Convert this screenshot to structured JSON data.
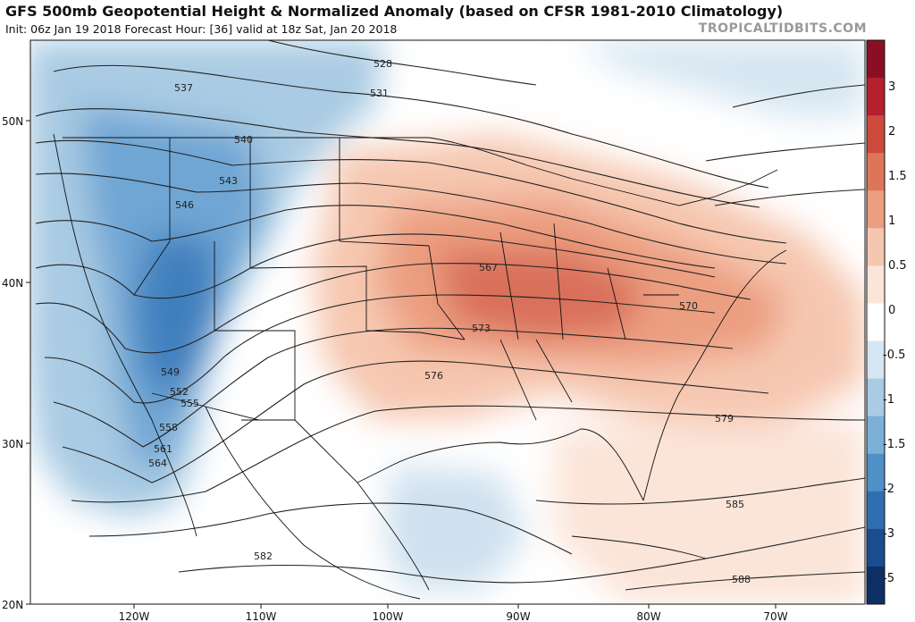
{
  "header": {
    "title": "GFS 500mb Geopotential Height & Normalized Anomaly (based on CFSR 1981-2010 Climatology)",
    "init_line": "Init: 06z Jan 19 2018   Forecast Hour: [36]   valid at 18z Sat, Jan 20 2018",
    "credit": "TROPICALTIDBITS.COM"
  },
  "axes": {
    "lat_labels": [
      "50N",
      "40N",
      "30N",
      "20N"
    ],
    "lon_labels": [
      "120W",
      "110W",
      "100W",
      "90W",
      "80W",
      "70W"
    ]
  },
  "colorbar": {
    "labels": [
      "3",
      "2",
      "1.5",
      "1",
      "0.5",
      "0",
      "-0.5",
      "-1",
      "-1.5",
      "-2",
      "-3",
      "-5"
    ],
    "colors": [
      "#8b0f24",
      "#b51f2e",
      "#cc4a3c",
      "#dd7658",
      "#ec9e80",
      "#f6c7b0",
      "#fbe4d8",
      "#ffffff",
      "#d6e6f2",
      "#a9cbe3",
      "#7cb0d8",
      "#4f90c6",
      "#2f6fb1",
      "#1b4d8e",
      "#0d2f66"
    ]
  },
  "contours": {
    "labels": [
      "528",
      "531",
      "537",
      "540",
      "543",
      "546",
      "549",
      "552",
      "555",
      "558",
      "561",
      "564",
      "567",
      "570",
      "573",
      "576",
      "579",
      "582",
      "585",
      "588"
    ]
  }
}
